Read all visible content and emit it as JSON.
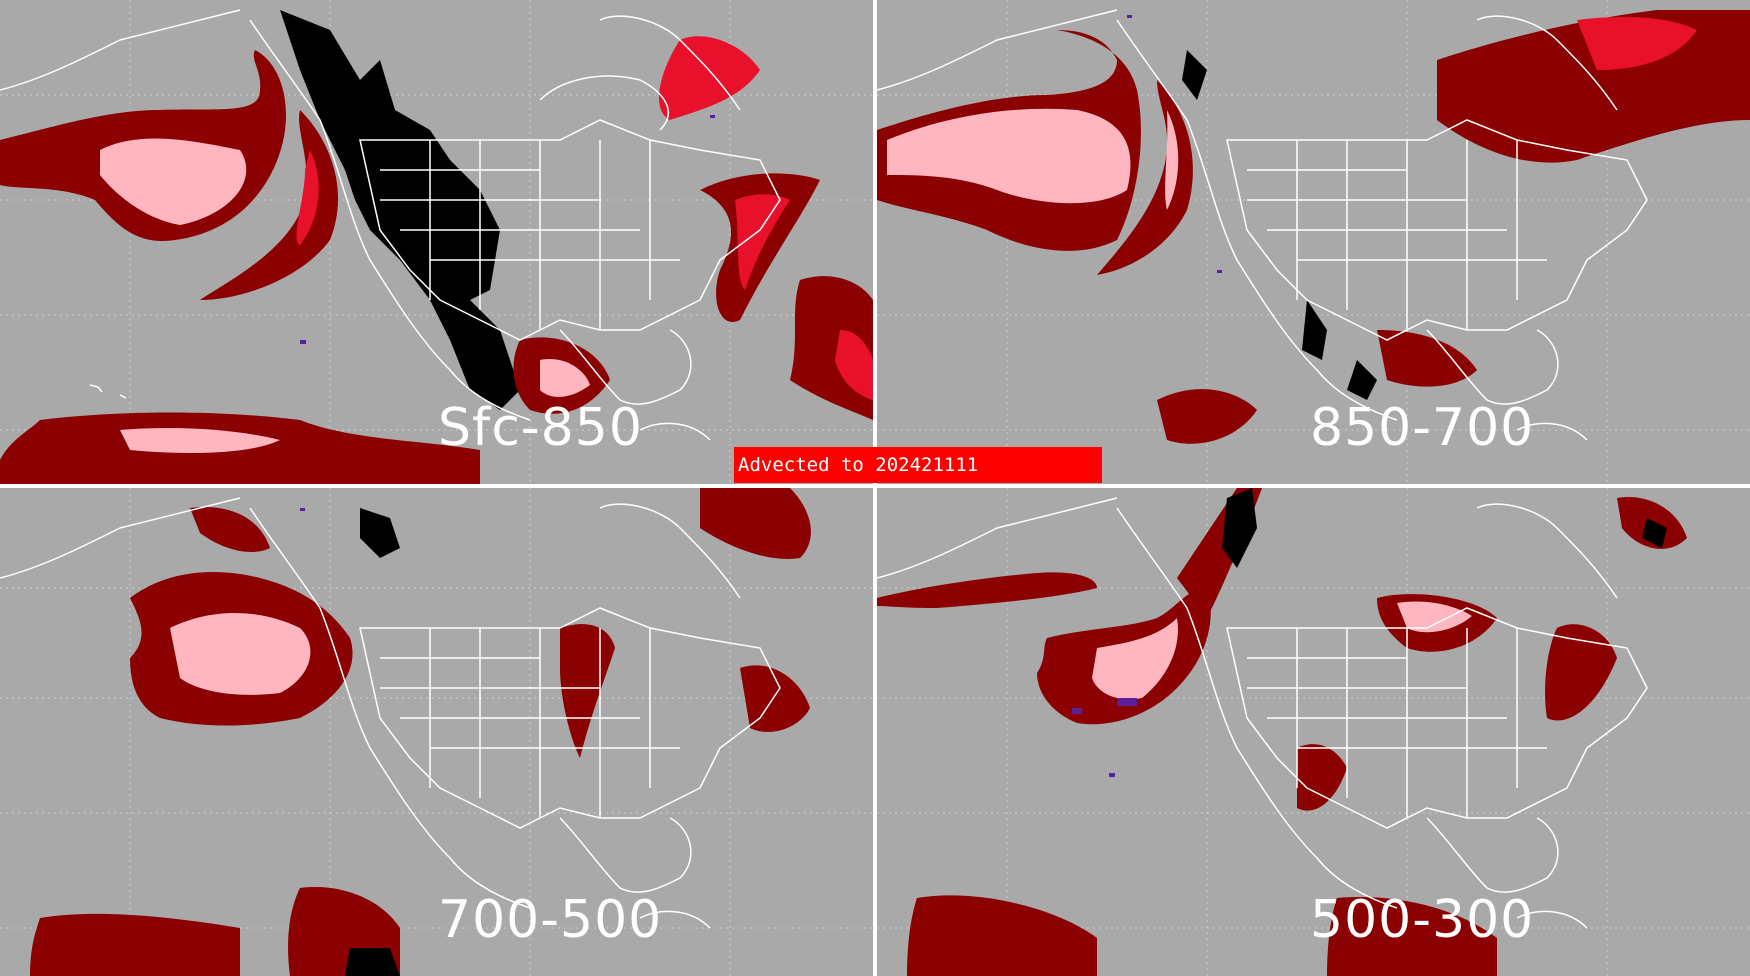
{
  "banner": {
    "text": "Advected to 202421111"
  },
  "panels": [
    {
      "label": "Sfc-850"
    },
    {
      "label": "850-700"
    },
    {
      "label": "700-500"
    },
    {
      "label": "500-300"
    }
  ],
  "colors": {
    "background": "#a9a9a9",
    "coast": "#ffffff",
    "dark_red": "#8b0000",
    "red": "#e8102a",
    "pink": "#ffb6c1",
    "black": "#000000",
    "purple": "#5a1f9c",
    "banner": "#ff0000"
  }
}
